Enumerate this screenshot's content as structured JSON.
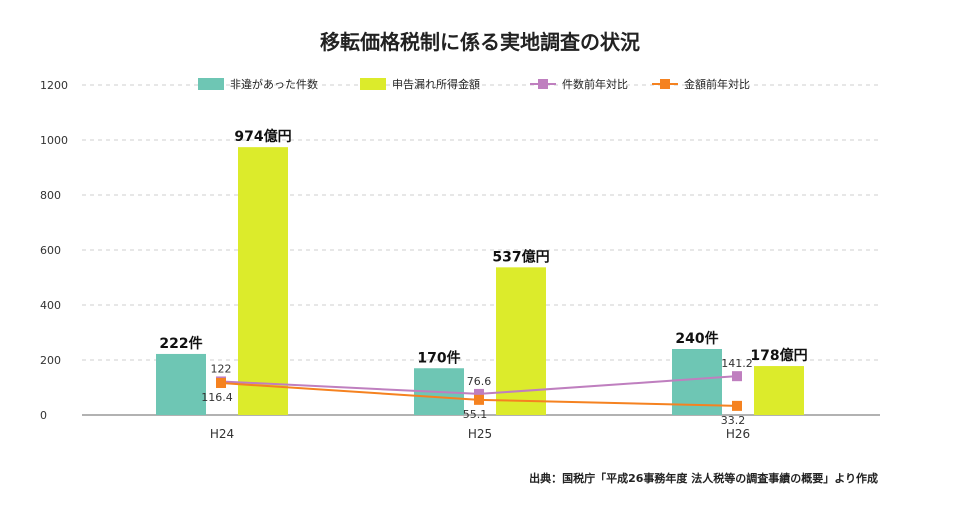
{
  "chart_data": {
    "type": "bar",
    "title": "移転価格税制に係る実地調査の状況",
    "categories": [
      "H24",
      "H25",
      "H26"
    ],
    "ylim": [
      0,
      1200
    ],
    "yticks": [
      0,
      200,
      400,
      600,
      800,
      1000,
      1200
    ],
    "series": [
      {
        "name": "非違があった件数",
        "kind": "bar",
        "color": "#6ec6b4",
        "values": [
          222,
          170,
          240
        ],
        "labels": [
          "222件",
          "170件",
          "240件"
        ]
      },
      {
        "name": "申告漏れ所得金額",
        "kind": "bar",
        "color": "#dceb2b",
        "values": [
          974,
          537,
          178
        ],
        "labels": [
          "974億円",
          "537億円",
          "178億円"
        ]
      },
      {
        "name": "件数前年対比",
        "kind": "line",
        "color": "#bf7fbf",
        "values": [
          122,
          76.6,
          141.2
        ],
        "labels": [
          "122",
          "76.6",
          "141.2"
        ]
      },
      {
        "name": "金額前年対比",
        "kind": "line",
        "color": "#f58220",
        "values": [
          116.4,
          55.1,
          33.2
        ],
        "labels": [
          "116.4",
          "55.1",
          "33.2"
        ]
      }
    ],
    "source": "出典：国税庁「平成26事務年度 法人税等の調査事績の概要」より作成"
  }
}
